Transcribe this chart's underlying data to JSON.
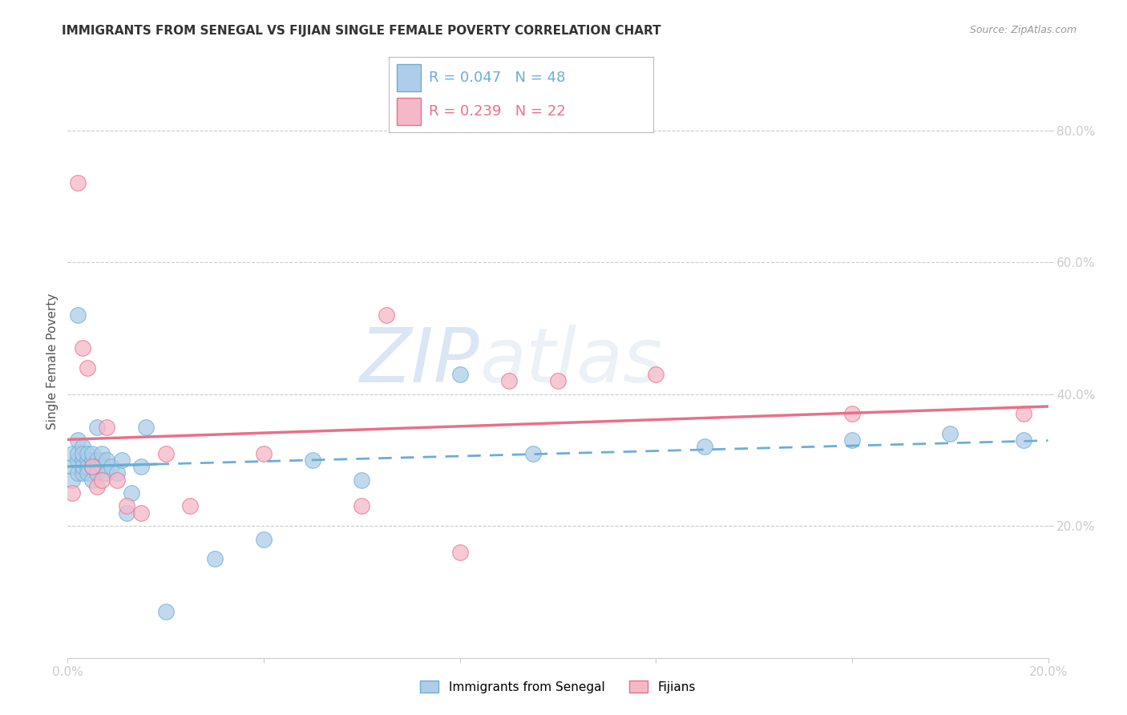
{
  "title": "IMMIGRANTS FROM SENEGAL VS FIJIAN SINGLE FEMALE POVERTY CORRELATION CHART",
  "source": "Source: ZipAtlas.com",
  "ylabel": "Single Female Poverty",
  "xlim": [
    0.0,
    0.2
  ],
  "ylim": [
    0.0,
    0.9
  ],
  "x_ticks": [
    0.0,
    0.04,
    0.08,
    0.12,
    0.16,
    0.2
  ],
  "x_tick_labels": [
    "0.0%",
    "",
    "",
    "",
    "",
    "20.0%"
  ],
  "y_ticks_right": [
    0.2,
    0.4,
    0.6,
    0.8
  ],
  "y_tick_labels_right": [
    "20.0%",
    "40.0%",
    "60.0%",
    "80.0%"
  ],
  "senegal_color": "#6baed6",
  "fijian_color": "#e8708a",
  "senegal_marker_face": "#aecde8",
  "fijian_marker_face": "#f5b8c8",
  "background_color": "#ffffff",
  "grid_color": "#cccccc",
  "tick_label_color": "#5b9bd5",
  "title_color": "#333333",
  "source_color": "#999999",
  "ylabel_color": "#555555",
  "watermark_zip": "ZIP",
  "watermark_atlas": "atlas",
  "senegal_x": [
    0.001,
    0.001,
    0.001,
    0.002,
    0.002,
    0.002,
    0.002,
    0.002,
    0.003,
    0.003,
    0.003,
    0.003,
    0.003,
    0.004,
    0.004,
    0.004,
    0.004,
    0.005,
    0.005,
    0.005,
    0.005,
    0.006,
    0.006,
    0.006,
    0.006,
    0.007,
    0.007,
    0.007,
    0.008,
    0.008,
    0.009,
    0.01,
    0.011,
    0.012,
    0.013,
    0.015,
    0.016,
    0.02,
    0.03,
    0.04,
    0.05,
    0.06,
    0.08,
    0.095,
    0.13,
    0.16,
    0.18,
    0.195
  ],
  "senegal_y": [
    0.29,
    0.31,
    0.27,
    0.33,
    0.3,
    0.28,
    0.31,
    0.52,
    0.3,
    0.28,
    0.32,
    0.29,
    0.31,
    0.3,
    0.29,
    0.28,
    0.31,
    0.3,
    0.29,
    0.27,
    0.31,
    0.35,
    0.3,
    0.29,
    0.28,
    0.3,
    0.31,
    0.29,
    0.3,
    0.28,
    0.29,
    0.28,
    0.3,
    0.22,
    0.25,
    0.29,
    0.35,
    0.07,
    0.15,
    0.18,
    0.3,
    0.27,
    0.43,
    0.31,
    0.32,
    0.33,
    0.34,
    0.33
  ],
  "fijian_x": [
    0.001,
    0.002,
    0.003,
    0.004,
    0.005,
    0.006,
    0.007,
    0.008,
    0.01,
    0.012,
    0.015,
    0.02,
    0.025,
    0.04,
    0.06,
    0.065,
    0.08,
    0.09,
    0.1,
    0.12,
    0.16,
    0.195
  ],
  "fijian_y": [
    0.25,
    0.72,
    0.47,
    0.44,
    0.29,
    0.26,
    0.27,
    0.35,
    0.27,
    0.23,
    0.22,
    0.31,
    0.23,
    0.31,
    0.23,
    0.52,
    0.16,
    0.42,
    0.42,
    0.43,
    0.37,
    0.37
  ],
  "legend_R1": "R = 0.047",
  "legend_N1": "N = 48",
  "legend_R2": "R = 0.239",
  "legend_N2": "N = 22",
  "legend_label1": "Immigrants from Senegal",
  "legend_label2": "Fijians"
}
